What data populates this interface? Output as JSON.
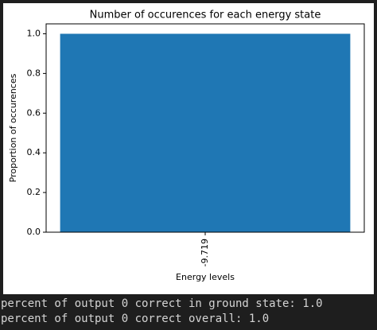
{
  "chart_data": {
    "type": "bar",
    "title": "Number of occurences for each energy state",
    "xlabel": "Energy levels",
    "ylabel": "Proportion of occurences",
    "categories": [
      "-9.719"
    ],
    "values": [
      1.0
    ],
    "color": "#1f77b4",
    "ylim": [
      0,
      1.05
    ],
    "yticks": [
      {
        "value": 0,
        "label": "0.0"
      },
      {
        "value": 0.2,
        "label": "0.2"
      },
      {
        "value": 0.4,
        "label": "0.4"
      },
      {
        "value": 0.6,
        "label": "0.6"
      },
      {
        "value": 0.8,
        "label": "0.8"
      },
      {
        "value": 1,
        "label": "1.0"
      }
    ],
    "grid": false
  },
  "output_lines": [
    "percent of output 0 correct in ground state: 1.0",
    "percent of output 0 correct overall: 1.0"
  ]
}
